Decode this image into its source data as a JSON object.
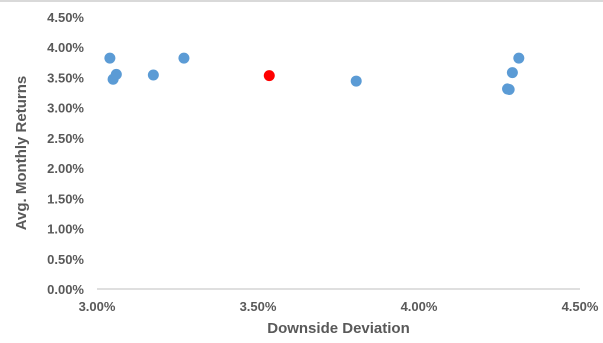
{
  "chart_data": {
    "type": "scatter",
    "title": "",
    "xlabel": "Downside Deviation",
    "ylabel": "Avg. Monthly Returns",
    "xlim": [
      0.03,
      0.045
    ],
    "ylim": [
      0.0,
      0.045
    ],
    "x_ticks": [
      0.03,
      0.035,
      0.04,
      0.045
    ],
    "x_tick_labels": [
      "3.00%",
      "3.50%",
      "4.00%",
      "4.50%"
    ],
    "y_ticks": [
      0.0,
      0.005,
      0.01,
      0.015,
      0.02,
      0.025,
      0.03,
      0.035,
      0.04,
      0.045
    ],
    "y_tick_labels": [
      "0.00%",
      "0.50%",
      "1.00%",
      "1.50%",
      "2.00%",
      "2.50%",
      "3.00%",
      "3.50%",
      "4.00%",
      "4.50%"
    ],
    "grid": false,
    "legend": "none",
    "colors": {
      "default": "#5b9bd5",
      "highlight": "#ff0000",
      "axis": "#bfbfbf"
    },
    "points": [
      {
        "x": 0.0304,
        "y": 0.0382,
        "highlight": false
      },
      {
        "x": 0.0305,
        "y": 0.0347,
        "highlight": false
      },
      {
        "x": 0.0306,
        "y": 0.0355,
        "highlight": false
      },
      {
        "x": 0.03175,
        "y": 0.0354,
        "highlight": false
      },
      {
        "x": 0.0327,
        "y": 0.0382,
        "highlight": false
      },
      {
        "x": 0.03535,
        "y": 0.0353,
        "highlight": true
      },
      {
        "x": 0.03805,
        "y": 0.0344,
        "highlight": false
      },
      {
        "x": 0.04275,
        "y": 0.0331,
        "highlight": false
      },
      {
        "x": 0.0428,
        "y": 0.033,
        "highlight": false
      },
      {
        "x": 0.0429,
        "y": 0.0358,
        "highlight": false
      },
      {
        "x": 0.0431,
        "y": 0.0382,
        "highlight": false
      }
    ]
  }
}
